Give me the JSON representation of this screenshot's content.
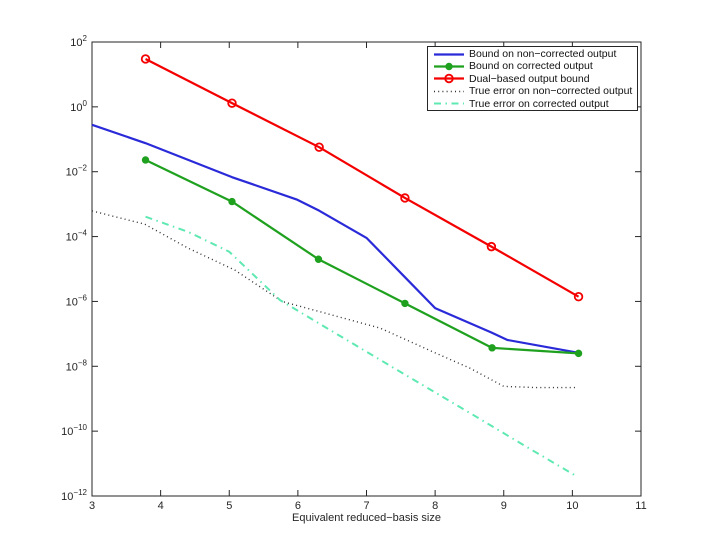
{
  "figure": {
    "background": "#ffffff",
    "axis_color": "#262626",
    "tick_label_color": "#262626"
  },
  "chart_data": {
    "type": "line",
    "title": "",
    "xlabel": "Equivalent reduced−basis size",
    "ylabel": "",
    "x_scale": "linear",
    "y_scale": "log",
    "xlim": [
      3,
      11
    ],
    "ylim_exp": [
      -12,
      2
    ],
    "x_ticks": [
      3,
      4,
      5,
      6,
      7,
      8,
      9,
      10,
      11
    ],
    "y_tick_exponents": [
      2,
      0,
      -2,
      -4,
      -6,
      -8,
      -10,
      -12
    ],
    "grid": false,
    "legend_position": "top-right",
    "series": [
      {
        "name": "Bound on non−corrected output",
        "color": "#2a2ad9",
        "style": "solid",
        "width": 2.2,
        "marker": "none",
        "x": [
          3.0,
          3.78,
          5.04,
          5.98,
          6.31,
          7.0,
          7.56,
          8.0,
          8.82,
          9.05,
          10.09
        ],
        "y": [
          0.28,
          0.076,
          0.0068,
          0.0014,
          0.00063,
          9.1e-05,
          5.6e-06,
          6.2e-07,
          1.1e-07,
          6.5e-08,
          2.6e-08
        ]
      },
      {
        "name": "Bound on corrected output",
        "color": "#1fa11f",
        "style": "solid",
        "width": 2.2,
        "marker": "dot",
        "x": [
          3.78,
          5.04,
          6.3,
          7.56,
          8.83,
          10.09
        ],
        "y": [
          0.023,
          0.0012,
          2e-05,
          8.7e-07,
          3.7e-08,
          2.5e-08
        ]
      },
      {
        "name": "Dual−based output bound",
        "color": "#f40000",
        "style": "solid",
        "width": 2.2,
        "marker": "circle",
        "x": [
          3.78,
          5.04,
          6.31,
          7.56,
          8.82,
          10.09
        ],
        "y": [
          30.0,
          1.3,
          0.057,
          0.00155,
          4.9e-05,
          1.4e-06
        ]
      },
      {
        "name": "True error on non−corrected output",
        "color": "#2e2e2e",
        "style": "dotted",
        "width": 1.4,
        "marker": "none",
        "x": [
          3.0,
          3.77,
          4.4,
          5.08,
          5.77,
          6.5,
          7.2,
          8.0,
          8.51,
          9.0,
          9.5,
          10.05
        ],
        "y": [
          0.00062,
          0.00024,
          4.4e-05,
          9.3e-06,
          1e-06,
          3.8e-07,
          1.5e-07,
          2.6e-08,
          8.7e-09,
          2.4e-09,
          2.2e-09,
          2.2e-09
        ]
      },
      {
        "name": "True error on corrected output",
        "color": "#5fe9b2",
        "style": "dashdot",
        "width": 2,
        "marker": "none",
        "x": [
          3.78,
          4.4,
          5.0,
          5.74,
          6.5,
          7.5,
          8.51,
          9.3,
          10.05
        ],
        "y": [
          0.00041,
          0.00014,
          3.4e-05,
          1.1e-06,
          1.2e-07,
          6.6e-09,
          3.6e-10,
          3.6e-11,
          4.2e-12
        ]
      }
    ]
  }
}
